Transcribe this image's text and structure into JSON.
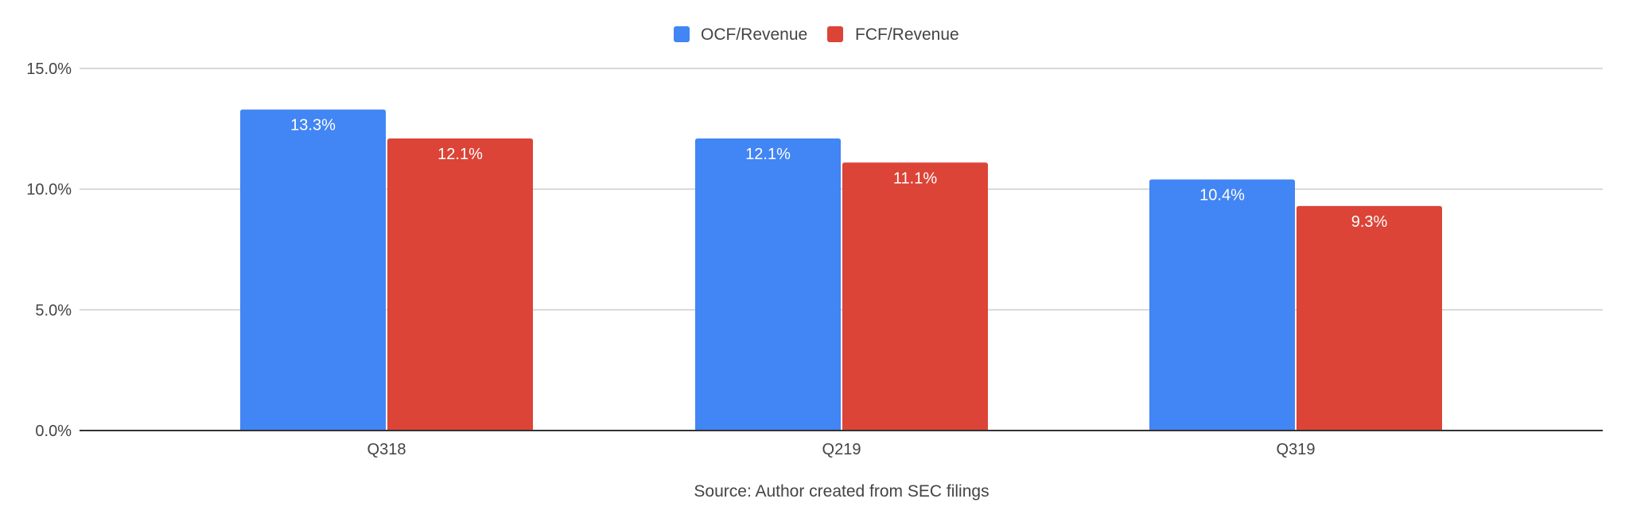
{
  "chart_data": {
    "type": "bar",
    "title": "",
    "xlabel": "Source: Author created from SEC filings",
    "ylabel": "",
    "categories": [
      "Q318",
      "Q219",
      "Q319"
    ],
    "series": [
      {
        "name": "OCF/Revenue",
        "color": "#4285F4",
        "values": [
          13.3,
          12.1,
          10.4
        ],
        "labels": [
          "13.3%",
          "12.1%",
          "10.4%"
        ]
      },
      {
        "name": "FCF/Revenue",
        "color": "#DB4437",
        "values": [
          12.1,
          11.1,
          9.3
        ],
        "labels": [
          "12.1%",
          "11.1%",
          "9.3%"
        ]
      }
    ],
    "ylim": [
      0,
      15
    ],
    "yticks": [
      0,
      5,
      10,
      15
    ],
    "ytick_labels": [
      "0.0%",
      "5.0%",
      "10.0%",
      "15.0%"
    ],
    "grid": true,
    "legend_position": "top-center",
    "data_labels": "inside-top"
  }
}
